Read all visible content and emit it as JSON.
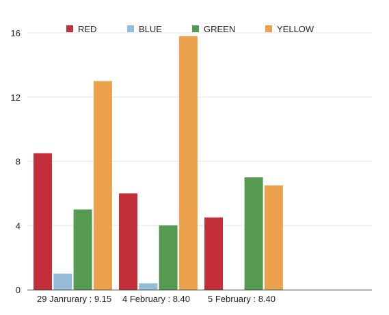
{
  "chart_data": {
    "type": "bar",
    "categories": [
      "29 Janrurary : 9.15",
      "4 February : 8.40",
      "5 February : 8.40"
    ],
    "series": [
      {
        "name": "RED",
        "color": "#c4303a",
        "values": [
          8.5,
          6.0,
          4.5
        ]
      },
      {
        "name": "BLUE",
        "color": "#94bcd9",
        "values": [
          1.0,
          0.4,
          null
        ]
      },
      {
        "name": "GREEN",
        "color": "#569a52",
        "values": [
          5.0,
          4.0,
          7.0
        ]
      },
      {
        "name": "YELLOW",
        "color": "#eca24d",
        "values": [
          13.0,
          15.8,
          6.5
        ]
      }
    ],
    "ylim": [
      0,
      16
    ],
    "yticks": [
      0,
      4,
      8,
      12,
      16
    ],
    "grid": true,
    "legend_position": "top"
  }
}
